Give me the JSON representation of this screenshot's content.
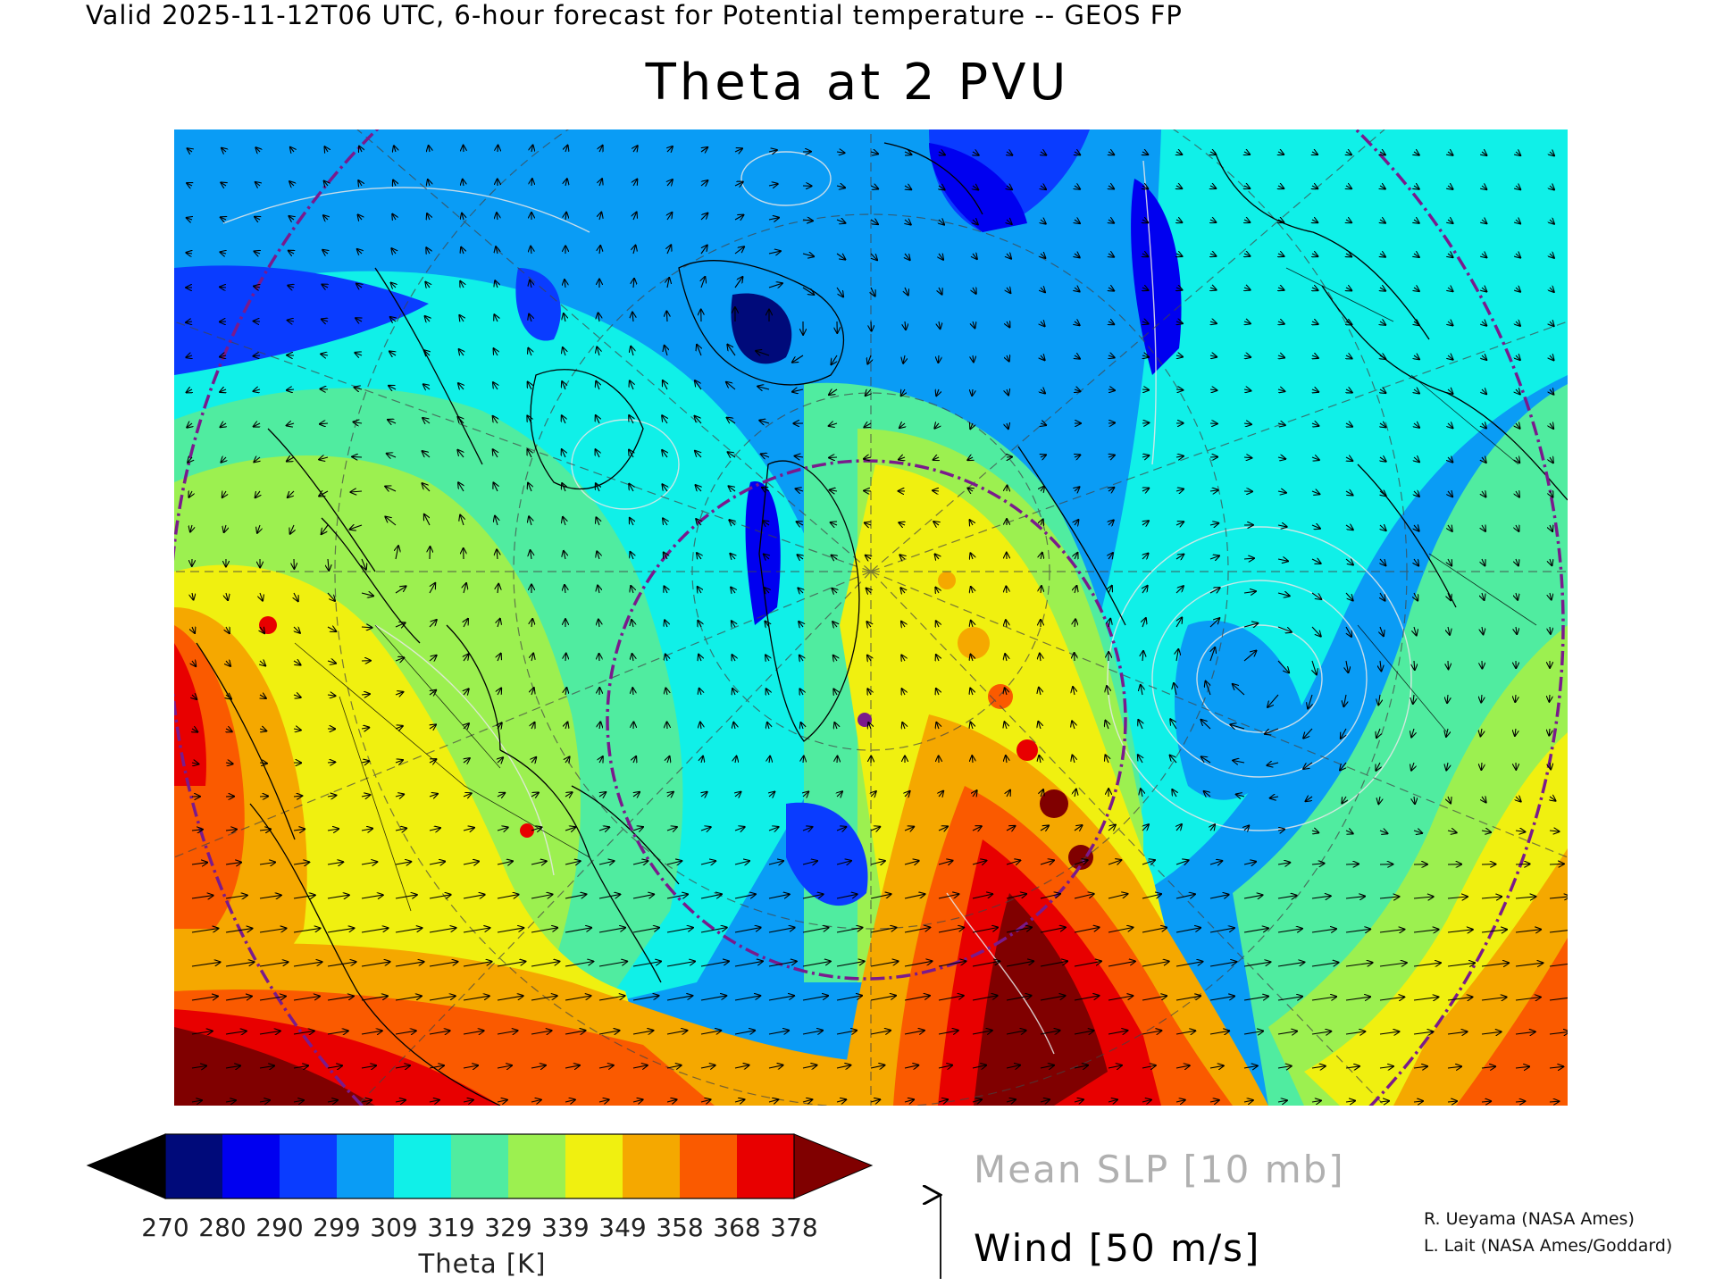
{
  "header": {
    "subtitle": "Valid 2025-11-12T06 UTC, 6-hour forecast for Potential temperature -- GEOS FP",
    "title": "Theta at 2 PVU"
  },
  "colorbar": {
    "tick_labels": [
      "270",
      "280",
      "290",
      "299",
      "309",
      "319",
      "329",
      "339",
      "349",
      "358",
      "368",
      "378"
    ],
    "units_label": "Theta [K]",
    "colors": [
      "#000000",
      "#000a7a",
      "#0000f0",
      "#0a3cff",
      "#0a9cf5",
      "#10f0e8",
      "#50eca0",
      "#9cf050",
      "#f0f010",
      "#f5a800",
      "#fa5a00",
      "#e80000",
      "#800000"
    ]
  },
  "legend": {
    "slp_label": "Mean SLP [10 mb]",
    "wind_label": "Wind [50 m/s]",
    "slp_color": "#c8c8c8",
    "wind_color": "#000000"
  },
  "credits": {
    "line1": "R. Ueyama (NASA Ames)",
    "line2": "L. Lait (NASA Ames/Goddard)"
  },
  "map": {
    "overlays": [
      "theta-filled-contours",
      "slp-contours",
      "wind-vectors",
      "coastlines",
      "political-boundaries",
      "lat-lon-grid",
      "flight-range-circles",
      "station-marker"
    ],
    "range_circle_color": "#7a1a8c",
    "station_marker_color": "#7a1a8c"
  }
}
